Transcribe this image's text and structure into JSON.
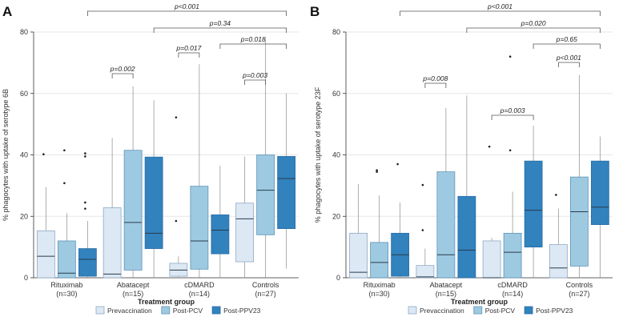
{
  "chart_data": [
    {
      "panel_label": "A",
      "type": "box",
      "ylabel": "% phagocytes with uptake of serotype 6B",
      "xlabel": "Treatment group",
      "ylim": [
        0,
        80
      ],
      "yticks": [
        0,
        20,
        40,
        60,
        80
      ],
      "grid": "horizontal",
      "categories": [
        {
          "name": "Rituximab",
          "n": "(n=30)"
        },
        {
          "name": "Abatacept",
          "n": "(n=15)"
        },
        {
          "name": "cDMARD",
          "n": "(n=14)"
        },
        {
          "name": "Controls",
          "n": "(n=27)"
        }
      ],
      "series_names": [
        "Prevaccination",
        "Post-PCV",
        "Post-PPV23"
      ],
      "boxes": [
        [
          {
            "q1": 0,
            "median": 7,
            "q3": 15.3,
            "whislo": 0,
            "whishi": 29.5,
            "fliers": [
              40.2
            ]
          },
          {
            "q1": 0,
            "median": 1.5,
            "q3": 12,
            "whislo": 0,
            "whishi": 21,
            "fliers": [
              30.8,
              41.5
            ]
          },
          {
            "q1": 0.5,
            "median": 6,
            "q3": 9.5,
            "whislo": 0,
            "whishi": 18.5,
            "fliers": [
              22.5,
              24.5,
              39.5,
              40.5
            ]
          }
        ],
        [
          {
            "q1": 0,
            "median": 1.2,
            "q3": 22.8,
            "whislo": 0,
            "whishi": 45.5,
            "fliers": []
          },
          {
            "q1": 2.5,
            "median": 18,
            "q3": 41.5,
            "whislo": 0,
            "whishi": 62.3,
            "fliers": []
          },
          {
            "q1": 9.5,
            "median": 14.5,
            "q3": 39.3,
            "whislo": 0,
            "whishi": 57.8,
            "fliers": []
          }
        ],
        [
          {
            "q1": 0.5,
            "median": 2.5,
            "q3": 4.7,
            "whislo": 0,
            "whishi": 7,
            "fliers": [
              18.5,
              52.2
            ]
          },
          {
            "q1": 2.8,
            "median": 12,
            "q3": 29.8,
            "whislo": 0,
            "whishi": 69.5,
            "fliers": []
          },
          {
            "q1": 7.8,
            "median": 15.5,
            "q3": 20.5,
            "whislo": 0,
            "whishi": 36.5,
            "fliers": []
          }
        ],
        [
          {
            "q1": 5.2,
            "median": 19.2,
            "q3": 24.3,
            "whislo": 0,
            "whishi": 39.5,
            "fliers": []
          },
          {
            "q1": 14,
            "median": 28.5,
            "q3": 40,
            "whislo": 0,
            "whishi": 77.5,
            "fliers": []
          },
          {
            "q1": 16,
            "median": 32.3,
            "q3": 39.5,
            "whislo": 3,
            "whishi": 60,
            "fliers": []
          }
        ]
      ],
      "comparisons": [
        {
          "label": "p=0.002",
          "from": [
            1,
            0
          ],
          "to": [
            1,
            1
          ],
          "level": 1
        },
        {
          "label": "p=0.017",
          "from": [
            2,
            0
          ],
          "to": [
            2,
            1
          ],
          "level": 1
        },
        {
          "label": "p=0.003",
          "from": [
            3,
            0
          ],
          "to": [
            3,
            1
          ],
          "level": 2
        },
        {
          "label": "p=0.018",
          "from": [
            2,
            2
          ],
          "to": [
            3,
            2
          ],
          "level": 3
        },
        {
          "label": "p=0.34",
          "from": [
            1,
            2
          ],
          "to": [
            3,
            2
          ],
          "level": 4
        },
        {
          "label": "p<0.001",
          "from": [
            0,
            2
          ],
          "to": [
            3,
            2
          ],
          "level": 5
        }
      ]
    },
    {
      "panel_label": "B",
      "type": "box",
      "ylabel": "% phagocytes with uptake of serotype 23F",
      "xlabel": "Treatment group",
      "ylim": [
        0,
        80
      ],
      "yticks": [
        0,
        20,
        40,
        60,
        80
      ],
      "grid": "horizontal",
      "categories": [
        {
          "name": "Rituximab",
          "n": "(n=30)"
        },
        {
          "name": "Abatacept",
          "n": "(n=15)"
        },
        {
          "name": "cDMARD",
          "n": "(n=14)"
        },
        {
          "name": "Controls",
          "n": "(n=27)"
        }
      ],
      "series_names": [
        "Prevaccination",
        "Post-PCV",
        "Post-PPV23"
      ],
      "boxes": [
        [
          {
            "q1": 0,
            "median": 1.8,
            "q3": 14.5,
            "whislo": 0,
            "whishi": 30.5,
            "fliers": []
          },
          {
            "q1": 0,
            "median": 5,
            "q3": 11.5,
            "whislo": 0,
            "whishi": 26.8,
            "fliers": [
              34.5,
              35
            ]
          },
          {
            "q1": 0.5,
            "median": 7.5,
            "q3": 14.5,
            "whislo": 0,
            "whishi": 24.5,
            "fliers": [
              37
            ]
          }
        ],
        [
          {
            "q1": 0,
            "median": 0.3,
            "q3": 4,
            "whislo": 0,
            "whishi": 9.5,
            "fliers": [
              15.5,
              30.2
            ]
          },
          {
            "q1": 0,
            "median": 7.5,
            "q3": 34.5,
            "whislo": 0,
            "whishi": 55.3,
            "fliers": []
          },
          {
            "q1": 0,
            "median": 9,
            "q3": 26.5,
            "whislo": 0,
            "whishi": 59.3,
            "fliers": []
          }
        ],
        [
          {
            "q1": 0,
            "median": 0,
            "q3": 12,
            "whislo": 0,
            "whishi": 13,
            "fliers": [
              42.7
            ]
          },
          {
            "q1": 0,
            "median": 8.3,
            "q3": 14.5,
            "whislo": 0,
            "whishi": 28,
            "fliers": [
              41.5,
              72
            ]
          },
          {
            "q1": 10,
            "median": 22,
            "q3": 38,
            "whislo": 0,
            "whishi": 49.5,
            "fliers": []
          }
        ],
        [
          {
            "q1": 0,
            "median": 3.2,
            "q3": 10.8,
            "whislo": 0,
            "whishi": 22.5,
            "fliers": [
              27
            ]
          },
          {
            "q1": 3.8,
            "median": 21.5,
            "q3": 32.8,
            "whislo": 0,
            "whishi": 66,
            "fliers": []
          },
          {
            "q1": 17.3,
            "median": 23,
            "q3": 38,
            "whislo": 0,
            "whishi": 46,
            "fliers": []
          }
        ]
      ],
      "comparisons": [
        {
          "label": "p=0.008",
          "from": [
            1,
            0
          ],
          "to": [
            1,
            1
          ],
          "level": 1
        },
        {
          "label": "p=0.003",
          "from": [
            2,
            0
          ],
          "to": [
            2,
            2
          ],
          "level": 1
        },
        {
          "label": "p<0.001",
          "from": [
            3,
            0
          ],
          "to": [
            3,
            1
          ],
          "level": 2
        },
        {
          "label": "p=0.65",
          "from": [
            2,
            2
          ],
          "to": [
            3,
            2
          ],
          "level": 3
        },
        {
          "label": "p=0.020",
          "from": [
            1,
            2
          ],
          "to": [
            3,
            2
          ],
          "level": 4
        },
        {
          "label": "p<0.001",
          "from": [
            0,
            2
          ],
          "to": [
            3,
            2
          ],
          "level": 5
        }
      ]
    }
  ],
  "legend": {
    "items": [
      {
        "label": "Prevaccination",
        "color": "#dce8f4"
      },
      {
        "label": "Post-PCV",
        "color": "#9dcae1"
      },
      {
        "label": "Post-PPV23",
        "color": "#3182bd"
      }
    ]
  },
  "colors": {
    "box_edges": [
      "#8fa9c4",
      "#5f93b8",
      "#2b6ea8"
    ],
    "grid": "#e6e6e6",
    "axis": "#333333"
  }
}
